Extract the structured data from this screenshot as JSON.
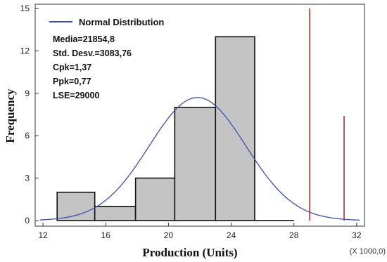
{
  "chart_data": {
    "type": "bar",
    "subtype": "histogram-with-normal-fit",
    "xlabel": "Production (Units)",
    "ylabel": "Frequency",
    "x_multiplier_label": "(X 1000,0)",
    "xlim": [
      11.5,
      32.5
    ],
    "ylim": [
      -0.4,
      15.3
    ],
    "x_ticks": [
      12,
      16,
      20,
      24,
      28,
      32
    ],
    "y_ticks": [
      0,
      3,
      6,
      9,
      12,
      15
    ],
    "bins": [
      {
        "start": 12.9,
        "end": 15.3,
        "count": 2
      },
      {
        "start": 15.3,
        "end": 17.9,
        "count": 1
      },
      {
        "start": 17.9,
        "end": 20.4,
        "count": 3
      },
      {
        "start": 20.4,
        "end": 23.0,
        "count": 8
      },
      {
        "start": 23.0,
        "end": 25.5,
        "count": 13
      },
      {
        "start": 25.5,
        "end": 28.0,
        "count": 0
      }
    ],
    "normal_curve": {
      "name": "Normal Distribution",
      "mean": 21.8548,
      "std": 3.08376,
      "peak": 8.7,
      "color": "#3a4fb3"
    },
    "reference_lines": [
      {
        "x": 29.0,
        "y_top": 15.0,
        "color": "#d42a2a"
      },
      {
        "x": 31.2,
        "y_top": 7.4,
        "color": "#a03050"
      }
    ],
    "stats": [
      "Media=21854,8",
      "Std. Desv.=3083,76",
      "Cpk=1,37",
      "Ppk=0,77",
      "LSE=29000"
    ],
    "bar_fill": "#c4c4c4",
    "bar_stroke": "#111111"
  }
}
